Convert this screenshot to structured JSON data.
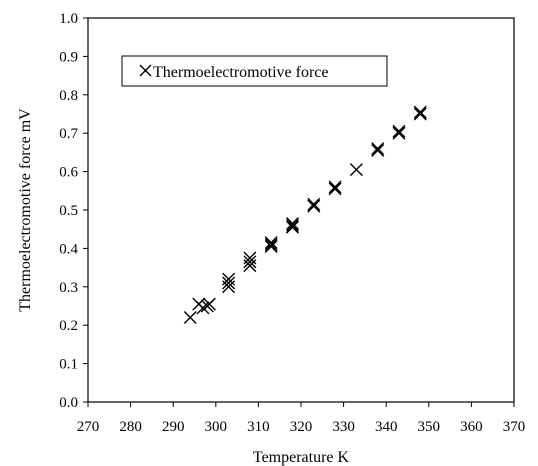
{
  "chart_data": {
    "type": "scatter",
    "title": "",
    "xlabel": "Temperature K",
    "ylabel": "Thermoelectromotive force mV",
    "xlim": [
      270,
      370
    ],
    "ylim": [
      0.0,
      1.0
    ],
    "x_ticks": [
      270,
      280,
      290,
      300,
      310,
      320,
      330,
      340,
      350,
      360,
      370
    ],
    "y_ticks": [
      "0.0",
      "0.1",
      "0.2",
      "0.3",
      "0.4",
      "0.5",
      "0.6",
      "0.7",
      "0.8",
      "0.9",
      "1.0"
    ],
    "grid": false,
    "legend_position": "top-left",
    "marker": "x",
    "series": [
      {
        "name": "Thermoelectromotive force",
        "points": [
          {
            "x": 294,
            "y": 0.22
          },
          {
            "x": 296,
            "y": 0.255
          },
          {
            "x": 297,
            "y": 0.245
          },
          {
            "x": 298,
            "y": 0.25
          },
          {
            "x": 298.5,
            "y": 0.255
          },
          {
            "x": 303,
            "y": 0.3
          },
          {
            "x": 303,
            "y": 0.31
          },
          {
            "x": 303,
            "y": 0.32
          },
          {
            "x": 308,
            "y": 0.355
          },
          {
            "x": 308,
            "y": 0.365
          },
          {
            "x": 308,
            "y": 0.375
          },
          {
            "x": 313,
            "y": 0.405
          },
          {
            "x": 313,
            "y": 0.41
          },
          {
            "x": 313,
            "y": 0.415
          },
          {
            "x": 318,
            "y": 0.455
          },
          {
            "x": 318,
            "y": 0.46
          },
          {
            "x": 318,
            "y": 0.465
          },
          {
            "x": 323,
            "y": 0.51
          },
          {
            "x": 323,
            "y": 0.515
          },
          {
            "x": 328,
            "y": 0.555
          },
          {
            "x": 328,
            "y": 0.56
          },
          {
            "x": 333,
            "y": 0.605
          },
          {
            "x": 338,
            "y": 0.655
          },
          {
            "x": 338,
            "y": 0.66
          },
          {
            "x": 343,
            "y": 0.7
          },
          {
            "x": 343,
            "y": 0.705
          },
          {
            "x": 348,
            "y": 0.75
          },
          {
            "x": 348,
            "y": 0.755
          }
        ]
      }
    ]
  }
}
